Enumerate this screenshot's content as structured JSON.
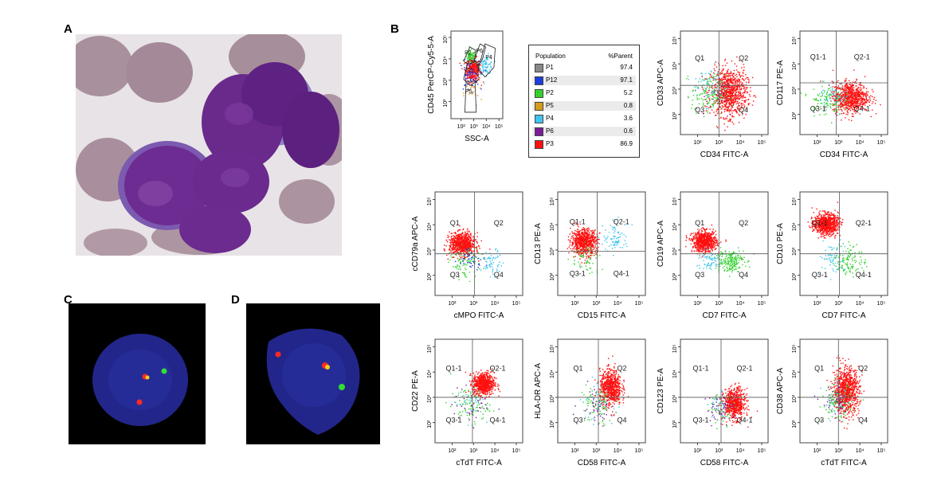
{
  "panels": {
    "a": "A",
    "b": "B",
    "c": "C",
    "d": "D"
  },
  "colors": {
    "red": "#ff1010",
    "green": "#34d12e",
    "cyan": "#3fc4f0",
    "blue": "#1a3ce0",
    "purple": "#7a1a9a",
    "orange": "#d89a1a",
    "gray": "#888888",
    "bone_marrow_bg": "#e8e3e6",
    "fish_bg": "#000000",
    "nucleus_blue": "#22268a"
  },
  "gate_table": {
    "col_population": "Population",
    "col_parent": "%Parent",
    "rows": [
      {
        "name": "P1",
        "value": "97.4",
        "color": "#888888"
      },
      {
        "name": "P12",
        "value": "97.1",
        "color": "#1a3ce0"
      },
      {
        "name": "P2",
        "value": "5.2",
        "color": "#34d12e"
      },
      {
        "name": "P5",
        "value": "0.8",
        "color": "#d89a1a"
      },
      {
        "name": "P4",
        "value": "3.6",
        "color": "#3fc4f0"
      },
      {
        "name": "P6",
        "value": "0.6",
        "color": "#7a1a9a"
      },
      {
        "name": "P3",
        "value": "86.9",
        "color": "#ff1010"
      }
    ]
  },
  "chart_data": [
    {
      "type": "scatter",
      "id": "gating",
      "xlabel": "SSC-A",
      "ylabel": "CD45 PerCP-Cy5-5-A",
      "x_ticks": [
        "10²",
        "10³",
        "10⁴",
        "10⁵"
      ],
      "y_ticks": [
        "10²",
        "10³",
        "10⁴",
        "10⁵"
      ],
      "gates": [
        "P2",
        "P3",
        "P4",
        "P5",
        "P6"
      ],
      "populations": [
        {
          "name": "P3",
          "color": "red",
          "cx": 2.9,
          "cy": 3.5,
          "n": 360,
          "sx": 0.3,
          "sy": 0.28
        },
        {
          "name": "P2",
          "color": "green",
          "cx": 2.7,
          "cy": 4.1,
          "n": 80,
          "sx": 0.22,
          "sy": 0.15
        },
        {
          "name": "P4",
          "color": "cyan",
          "cx": 3.95,
          "cy": 3.75,
          "n": 90,
          "sx": 0.28,
          "sy": 0.22
        },
        {
          "name": "P12",
          "color": "blue",
          "cx": 2.6,
          "cy": 3.2,
          "n": 60,
          "sx": 0.4,
          "sy": 0.35
        },
        {
          "name": "P5",
          "color": "orange",
          "cx": 2.9,
          "cy": 2.4,
          "n": 20,
          "sx": 0.35,
          "sy": 0.3
        }
      ]
    },
    {
      "type": "scatter",
      "id": "cd33_cd34",
      "xlabel": "CD34 FITC-A",
      "ylabel": "CD33 APC-A",
      "x_ticks": [
        "10²",
        "10³",
        "10⁴",
        "10⁵"
      ],
      "y_ticks": [
        "10²",
        "10³",
        "10⁴",
        "10⁵"
      ],
      "quadrants": [
        "Q1",
        "Q2",
        "Q3",
        "Q4"
      ],
      "qx": 3.0,
      "qy": 3.15,
      "populations": [
        {
          "color": "red",
          "cx": 3.45,
          "cy": 2.9,
          "n": 900,
          "sx": 0.42,
          "sy": 0.48
        },
        {
          "color": "green",
          "cx": 2.5,
          "cy": 2.8,
          "n": 140,
          "sx": 0.4,
          "sy": 0.4
        },
        {
          "color": "cyan",
          "cx": 2.6,
          "cy": 3.2,
          "n": 60,
          "sx": 0.4,
          "sy": 0.4
        },
        {
          "color": "purple",
          "cx": 2.8,
          "cy": 2.9,
          "n": 20,
          "sx": 0.5,
          "sy": 0.5
        }
      ]
    },
    {
      "type": "scatter",
      "id": "cd117_cd34",
      "xlabel": "CD34 FITC-A",
      "ylabel": "CD117 PE-A",
      "x_ticks": [
        "10²",
        "10³",
        "10⁴",
        "10⁵"
      ],
      "y_ticks": [
        "10²",
        "10³",
        "10⁴",
        "10⁵"
      ],
      "quadrants": [
        "Q1-1",
        "Q2-1",
        "Q3-1",
        "Q4-1"
      ],
      "qx": 2.9,
      "qy": 3.25,
      "populations": [
        {
          "color": "red",
          "cx": 3.55,
          "cy": 2.7,
          "n": 800,
          "sx": 0.42,
          "sy": 0.3
        },
        {
          "color": "green",
          "cx": 2.4,
          "cy": 2.6,
          "n": 110,
          "sx": 0.4,
          "sy": 0.3
        },
        {
          "color": "cyan",
          "cx": 2.8,
          "cy": 2.8,
          "n": 50,
          "sx": 0.35,
          "sy": 0.25
        }
      ]
    },
    {
      "type": "scatter",
      "id": "cd79a_cmpo",
      "xlabel": "cMPO FITC-A",
      "ylabel": "cCD79a APC-A",
      "x_ticks": [
        "10²",
        "10³",
        "10⁴",
        "10⁵"
      ],
      "y_ticks": [
        "10²",
        "10³",
        "10⁴",
        "10⁵"
      ],
      "quadrants": [
        "Q1",
        "Q2",
        "Q3",
        "Q4"
      ],
      "qx": 3.05,
      "qy": 2.85,
      "populations": [
        {
          "color": "red",
          "cx": 2.45,
          "cy": 3.25,
          "n": 800,
          "sx": 0.3,
          "sy": 0.22
        },
        {
          "color": "green",
          "cx": 2.6,
          "cy": 2.5,
          "n": 90,
          "sx": 0.35,
          "sy": 0.3
        },
        {
          "color": "cyan",
          "cx": 3.85,
          "cy": 2.5,
          "n": 60,
          "sx": 0.25,
          "sy": 0.25
        },
        {
          "color": "blue",
          "cx": 2.9,
          "cy": 2.7,
          "n": 40,
          "sx": 0.3,
          "sy": 0.2
        }
      ]
    },
    {
      "type": "scatter",
      "id": "cd13_cd15",
      "xlabel": "CD15 FITC-A",
      "ylabel": "CD13 PE-A",
      "x_ticks": [
        "10²",
        "10³",
        "10⁴",
        "10⁵"
      ],
      "y_ticks": [
        "10²",
        "10³",
        "10⁴",
        "10⁵"
      ],
      "quadrants": [
        "Q1-1",
        "Q2-1",
        "Q3-1",
        "Q4-1"
      ],
      "qx": 3.05,
      "qy": 2.95,
      "populations": [
        {
          "color": "red",
          "cx": 2.4,
          "cy": 3.35,
          "n": 750,
          "sx": 0.3,
          "sy": 0.25
        },
        {
          "color": "cyan",
          "cx": 3.9,
          "cy": 3.5,
          "n": 80,
          "sx": 0.3,
          "sy": 0.3
        },
        {
          "color": "green",
          "cx": 2.5,
          "cy": 2.6,
          "n": 60,
          "sx": 0.35,
          "sy": 0.35
        }
      ]
    },
    {
      "type": "scatter",
      "id": "cd19_cd7",
      "xlabel": "CD7 FITC-A",
      "ylabel": "CD19 APC-A",
      "x_ticks": [
        "10²",
        "10³",
        "10⁴",
        "10⁵"
      ],
      "y_ticks": [
        "10²",
        "10³",
        "10⁴",
        "10⁵"
      ],
      "quadrants": [
        "Q1",
        "Q2",
        "Q3",
        "Q4"
      ],
      "qx": 3.0,
      "qy": 2.85,
      "populations": [
        {
          "color": "red",
          "cx": 2.3,
          "cy": 3.35,
          "n": 750,
          "sx": 0.28,
          "sy": 0.2
        },
        {
          "color": "green",
          "cx": 3.45,
          "cy": 2.6,
          "n": 200,
          "sx": 0.35,
          "sy": 0.22
        },
        {
          "color": "cyan",
          "cx": 2.5,
          "cy": 2.6,
          "n": 60,
          "sx": 0.3,
          "sy": 0.2
        }
      ]
    },
    {
      "type": "scatter",
      "id": "cd10_cd7",
      "xlabel": "CD7 FITC-A",
      "ylabel": "CD10 PE-A",
      "x_ticks": [
        "10²",
        "10³",
        "10⁴",
        "10⁵"
      ],
      "y_ticks": [
        "10²",
        "10³",
        "10⁴",
        "10⁵"
      ],
      "quadrants": [
        "Q1-1",
        "Q2-1",
        "Q3-1",
        "Q4-1"
      ],
      "qx": 3.05,
      "qy": 2.85,
      "populations": [
        {
          "color": "red",
          "cx": 2.4,
          "cy": 4.05,
          "n": 800,
          "sx": 0.28,
          "sy": 0.2
        },
        {
          "color": "green",
          "cx": 3.5,
          "cy": 2.6,
          "n": 120,
          "sx": 0.4,
          "sy": 0.3
        },
        {
          "color": "cyan",
          "cx": 2.7,
          "cy": 2.7,
          "n": 60,
          "sx": 0.3,
          "sy": 0.35
        }
      ]
    },
    {
      "type": "scatter",
      "id": "cd22_ctdt",
      "xlabel": "cTdT FITC-A",
      "ylabel": "CD22 PE-A",
      "x_ticks": [
        "10²",
        "10³",
        "10⁴",
        "10⁵"
      ],
      "y_ticks": [
        "10²",
        "10³",
        "10⁴",
        "10⁵"
      ],
      "quadrants": [
        "Q1-1",
        "Q2-1",
        "Q3-1",
        "Q4-1"
      ],
      "qx": 2.95,
      "qy": 3.0,
      "populations": [
        {
          "color": "red",
          "cx": 3.45,
          "cy": 3.55,
          "n": 700,
          "sx": 0.25,
          "sy": 0.22
        },
        {
          "color": "green",
          "cx": 2.8,
          "cy": 2.7,
          "n": 90,
          "sx": 0.45,
          "sy": 0.35
        },
        {
          "color": "purple",
          "cx": 2.9,
          "cy": 2.7,
          "n": 40,
          "sx": 0.45,
          "sy": 0.35
        },
        {
          "color": "cyan",
          "cx": 2.8,
          "cy": 2.8,
          "n": 30,
          "sx": 0.35,
          "sy": 0.3
        }
      ]
    },
    {
      "type": "scatter",
      "id": "hladr_cd58",
      "xlabel": "CD58 FITC-A",
      "ylabel": "HLA-DR APC-A",
      "x_ticks": [
        "10²",
        "10³",
        "10⁴",
        "10⁵"
      ],
      "y_ticks": [
        "10²",
        "10³",
        "10⁴",
        "10⁵"
      ],
      "quadrants": [
        "Q1",
        "Q2",
        "Q3",
        "Q4"
      ],
      "qx": 3.1,
      "qy": 3.0,
      "populations": [
        {
          "color": "red",
          "cx": 3.65,
          "cy": 3.4,
          "n": 700,
          "sx": 0.25,
          "sy": 0.35
        },
        {
          "color": "green",
          "cx": 3.0,
          "cy": 2.7,
          "n": 80,
          "sx": 0.4,
          "sy": 0.4
        },
        {
          "color": "purple",
          "cx": 3.0,
          "cy": 2.8,
          "n": 50,
          "sx": 0.4,
          "sy": 0.4
        },
        {
          "color": "cyan",
          "cx": 3.0,
          "cy": 2.8,
          "n": 30,
          "sx": 0.4,
          "sy": 0.4
        }
      ]
    },
    {
      "type": "scatter",
      "id": "cd123_cd58",
      "xlabel": "CD58 FITC-A",
      "ylabel": "CD123 PE-A",
      "x_ticks": [
        "10²",
        "10³",
        "10⁴",
        "10⁵"
      ],
      "y_ticks": [
        "10²",
        "10³",
        "10⁴",
        "10⁵"
      ],
      "quadrants": [
        "Q1-1",
        "Q2-1",
        "Q3-1",
        "Q4-1"
      ],
      "qx": 3.1,
      "qy": 3.0,
      "populations": [
        {
          "color": "red",
          "cx": 3.7,
          "cy": 2.75,
          "n": 650,
          "sx": 0.25,
          "sy": 0.3
        },
        {
          "color": "purple",
          "cx": 3.1,
          "cy": 2.6,
          "n": 60,
          "sx": 0.35,
          "sy": 0.3
        },
        {
          "color": "green",
          "cx": 3.1,
          "cy": 2.6,
          "n": 40,
          "sx": 0.35,
          "sy": 0.3
        },
        {
          "color": "cyan",
          "cx": 3.1,
          "cy": 2.7,
          "n": 30,
          "sx": 0.3,
          "sy": 0.3
        }
      ]
    },
    {
      "type": "scatter",
      "id": "cd38_ctdt",
      "xlabel": "cTdT FITC-A",
      "ylabel": "CD38 APC-A",
      "x_ticks": [
        "10²",
        "10³",
        "10⁴",
        "10⁵"
      ],
      "y_ticks": [
        "10²",
        "10³",
        "10⁴",
        "10⁵"
      ],
      "quadrants": [
        "Q1",
        "Q2",
        "Q3",
        "Q4"
      ],
      "qx": 3.0,
      "qy": 3.0,
      "populations": [
        {
          "color": "red",
          "cx": 3.35,
          "cy": 3.3,
          "n": 850,
          "sx": 0.3,
          "sy": 0.45
        },
        {
          "color": "green",
          "cx": 2.9,
          "cy": 2.8,
          "n": 100,
          "sx": 0.35,
          "sy": 0.35
        },
        {
          "color": "purple",
          "cx": 2.9,
          "cy": 2.8,
          "n": 40,
          "sx": 0.35,
          "sy": 0.35
        },
        {
          "color": "cyan",
          "cx": 2.9,
          "cy": 2.8,
          "n": 30,
          "sx": 0.35,
          "sy": 0.35
        }
      ]
    }
  ]
}
